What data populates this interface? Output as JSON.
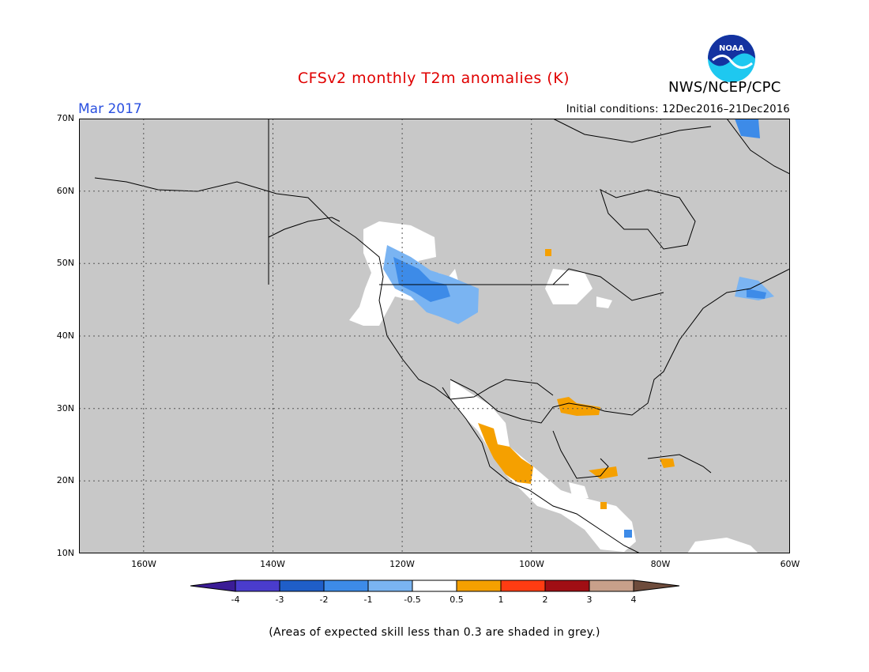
{
  "header": {
    "title": "CFSv2 monthly T2m anomalies (K)",
    "agency": "NWS/NCEP/CPC",
    "logo_text": "NOAA",
    "month": "Mar 2017",
    "initial_conditions": "Initial conditions: 12Dec2016–21Dec2016"
  },
  "map": {
    "lat_labels": [
      "70N",
      "60N",
      "50N",
      "40N",
      "30N",
      "20N",
      "10N"
    ],
    "lon_labels": [
      "160W",
      "140W",
      "120W",
      "100W",
      "80W",
      "60W"
    ],
    "extent": {
      "lon": [
        -170,
        -60
      ],
      "lat": [
        10,
        70
      ]
    },
    "gridlines": true,
    "background_color": "#c8c8c8",
    "regions": [
      {
        "category": "-2 to -1",
        "area": "Pacific Northwest / Idaho / W Montana"
      },
      {
        "category": "-3 to -2",
        "area": "Southern Quebec / Maine"
      },
      {
        "category": "1 to 2",
        "area": "Western and central Mexico"
      },
      {
        "category": "1 to 2",
        "area": "Louisiana / Gulf coast"
      },
      {
        "category": "1 to 2",
        "area": "Yucatan peninsula"
      },
      {
        "category": "1 to 2",
        "area": "Cuba"
      }
    ]
  },
  "colorbar": {
    "labels": [
      "-4",
      "-3",
      "-2",
      "-1",
      "-0.5",
      "0.5",
      "1",
      "2",
      "3",
      "4"
    ],
    "colors": [
      "#3b1c96",
      "#4a3ccd",
      "#1f5ec8",
      "#3d8be8",
      "#7ab4f2",
      "#ffffff",
      "#f5a000",
      "#ff3c12",
      "#a00e14",
      "#c8a08a",
      "#6e4c3c"
    ]
  },
  "footer": {
    "note": "(Areas of expected skill less than 0.3 are shaded in grey.)"
  }
}
